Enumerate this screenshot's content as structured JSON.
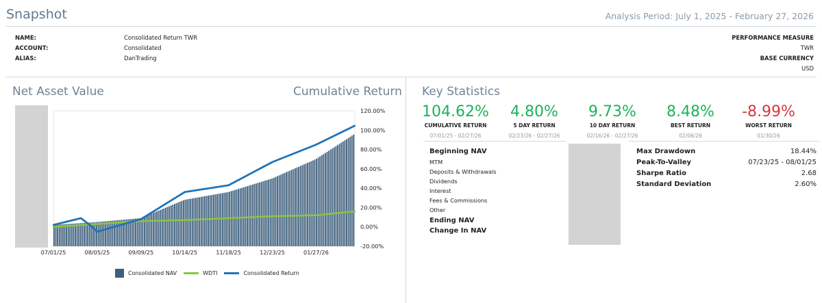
{
  "header": {
    "title": "Snapshot",
    "period": "Analysis Period: July 1, 2025 - February 27, 2026"
  },
  "info": {
    "name_label": "NAME:",
    "name_value": "Consolidated Return TWR",
    "account_label": "ACCOUNT:",
    "account_value": "Consolidated",
    "alias_label": "ALIAS:",
    "alias_value": "DanTrading",
    "perf_label": "PERFORMANCE MEASURE",
    "perf_value": "TWR",
    "currency_label": "BASE CURRENCY",
    "currency_value": "USD"
  },
  "left_panel": {
    "title": "Net Asset Value",
    "right_title": "Cumulative Return"
  },
  "chart_data": {
    "type": "bar",
    "x_tick_labels": [
      "07/01/25",
      "08/05/25",
      "09/09/25",
      "10/14/25",
      "11/18/25",
      "12/23/25",
      "01/27/26"
    ],
    "y_right_ticks": [
      "120.00%",
      "100.00%",
      "80.00%",
      "60.00%",
      "40.00%",
      "20.00%",
      "0.00%",
      "-20.00%"
    ],
    "ylim": [
      -20,
      120
    ],
    "grid": false,
    "legend_position": "bottom",
    "series": [
      {
        "name": "Consolidated NAV",
        "kind": "bar",
        "color": "#3e5f7d",
        "x": [
          "07/01/25",
          "08/05/25",
          "09/09/25",
          "10/14/25",
          "11/18/25",
          "12/23/25",
          "01/27/26",
          "02/27/26"
        ],
        "values": [
          2,
          5,
          9,
          28,
          36,
          50,
          70,
          96
        ]
      },
      {
        "name": "WDTI",
        "kind": "line",
        "color": "#8cc43f",
        "x": [
          "07/01/25",
          "08/05/25",
          "09/09/25",
          "10/14/25",
          "11/18/25",
          "12/23/25",
          "01/27/26",
          "02/27/26"
        ],
        "values": [
          0,
          3,
          6,
          7,
          9,
          11,
          12,
          16
        ]
      },
      {
        "name": "Consolidated Return",
        "kind": "line",
        "color": "#1d73b8",
        "x": [
          "07/01/25",
          "07/23/25",
          "08/01/25",
          "08/05/25",
          "09/09/25",
          "10/14/25",
          "11/18/25",
          "12/23/25",
          "01/27/26",
          "02/27/26"
        ],
        "values": [
          2,
          9,
          0,
          -5,
          8,
          36,
          43,
          67,
          85,
          104.62
        ]
      }
    ]
  },
  "legend": {
    "nav": "Consolidated NAV",
    "wdti": "WDTI",
    "ret": "Consolidated Return"
  },
  "key_stats": {
    "title": "Key Statistics",
    "cards": [
      {
        "value": "104.62%",
        "label": "CUMULATIVE RETURN",
        "date": "07/01/25 - 02/27/26",
        "color": "#1bb35a"
      },
      {
        "value": "4.80%",
        "label": "5 DAY RETURN",
        "date": "02/23/26 - 02/27/26",
        "color": "#1bb35a"
      },
      {
        "value": "9.73%",
        "label": "10 DAY RETURN",
        "date": "02/16/26 - 02/27/26",
        "color": "#1bb35a"
      },
      {
        "value": "8.48%",
        "label": "BEST RETURN",
        "date": "02/06/26",
        "color": "#1bb35a"
      },
      {
        "value": "-8.99%",
        "label": "WORST RETURN",
        "date": "01/30/26",
        "color": "#d9363e"
      }
    ]
  },
  "nav_breakdown": {
    "beginning": "Beginning NAV",
    "mtm": "MTM",
    "deposits": "Deposits & Withdrawals",
    "dividends": "Dividends",
    "interest": "Interest",
    "fees": "Fees & Commissions",
    "other": "Other",
    "ending": "Ending NAV",
    "change": "Change In NAV"
  },
  "risk_stats": [
    {
      "label": "Max Drawdown",
      "value": "18.44%"
    },
    {
      "label": "Peak-To-Valley",
      "value": "07/23/25 - 08/01/25"
    },
    {
      "label": "Sharpe Ratio",
      "value": "2.68"
    },
    {
      "label": "Standard Deviation",
      "value": "2.60%"
    }
  ]
}
